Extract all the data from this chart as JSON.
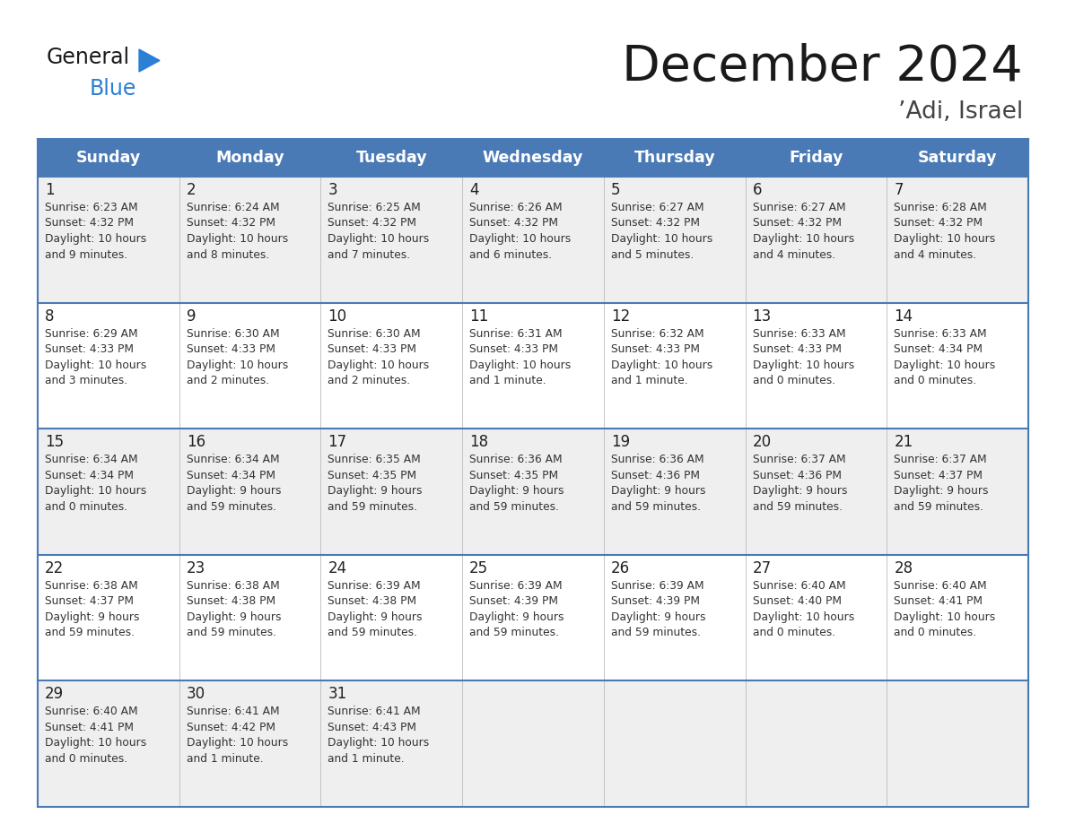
{
  "title": "December 2024",
  "subtitle": "’Adi, Israel",
  "days_of_week": [
    "Sunday",
    "Monday",
    "Tuesday",
    "Wednesday",
    "Thursday",
    "Friday",
    "Saturday"
  ],
  "header_bg": "#4a7ab5",
  "header_text_color": "#ffffff",
  "cell_bg_odd": "#efefef",
  "cell_bg_even": "#ffffff",
  "cell_border_color": "#4a7ab5",
  "day_num_color": "#222222",
  "cell_text_color": "#333333",
  "title_color": "#1a1a1a",
  "subtitle_color": "#444444",
  "logo_general_color": "#1a1a1a",
  "logo_blue_color": "#2b7fd4",
  "logo_triangle_color": "#2b7fd4",
  "weeks": [
    [
      {
        "day": 1,
        "sunrise": "6:23 AM",
        "sunset": "4:32 PM",
        "daylight": "10 hours\nand 9 minutes."
      },
      {
        "day": 2,
        "sunrise": "6:24 AM",
        "sunset": "4:32 PM",
        "daylight": "10 hours\nand 8 minutes."
      },
      {
        "day": 3,
        "sunrise": "6:25 AM",
        "sunset": "4:32 PM",
        "daylight": "10 hours\nand 7 minutes."
      },
      {
        "day": 4,
        "sunrise": "6:26 AM",
        "sunset": "4:32 PM",
        "daylight": "10 hours\nand 6 minutes."
      },
      {
        "day": 5,
        "sunrise": "6:27 AM",
        "sunset": "4:32 PM",
        "daylight": "10 hours\nand 5 minutes."
      },
      {
        "day": 6,
        "sunrise": "6:27 AM",
        "sunset": "4:32 PM",
        "daylight": "10 hours\nand 4 minutes."
      },
      {
        "day": 7,
        "sunrise": "6:28 AM",
        "sunset": "4:32 PM",
        "daylight": "10 hours\nand 4 minutes."
      }
    ],
    [
      {
        "day": 8,
        "sunrise": "6:29 AM",
        "sunset": "4:33 PM",
        "daylight": "10 hours\nand 3 minutes."
      },
      {
        "day": 9,
        "sunrise": "6:30 AM",
        "sunset": "4:33 PM",
        "daylight": "10 hours\nand 2 minutes."
      },
      {
        "day": 10,
        "sunrise": "6:30 AM",
        "sunset": "4:33 PM",
        "daylight": "10 hours\nand 2 minutes."
      },
      {
        "day": 11,
        "sunrise": "6:31 AM",
        "sunset": "4:33 PM",
        "daylight": "10 hours\nand 1 minute."
      },
      {
        "day": 12,
        "sunrise": "6:32 AM",
        "sunset": "4:33 PM",
        "daylight": "10 hours\nand 1 minute."
      },
      {
        "day": 13,
        "sunrise": "6:33 AM",
        "sunset": "4:33 PM",
        "daylight": "10 hours\nand 0 minutes."
      },
      {
        "day": 14,
        "sunrise": "6:33 AM",
        "sunset": "4:34 PM",
        "daylight": "10 hours\nand 0 minutes."
      }
    ],
    [
      {
        "day": 15,
        "sunrise": "6:34 AM",
        "sunset": "4:34 PM",
        "daylight": "10 hours\nand 0 minutes."
      },
      {
        "day": 16,
        "sunrise": "6:34 AM",
        "sunset": "4:34 PM",
        "daylight": "9 hours\nand 59 minutes."
      },
      {
        "day": 17,
        "sunrise": "6:35 AM",
        "sunset": "4:35 PM",
        "daylight": "9 hours\nand 59 minutes."
      },
      {
        "day": 18,
        "sunrise": "6:36 AM",
        "sunset": "4:35 PM",
        "daylight": "9 hours\nand 59 minutes."
      },
      {
        "day": 19,
        "sunrise": "6:36 AM",
        "sunset": "4:36 PM",
        "daylight": "9 hours\nand 59 minutes."
      },
      {
        "day": 20,
        "sunrise": "6:37 AM",
        "sunset": "4:36 PM",
        "daylight": "9 hours\nand 59 minutes."
      },
      {
        "day": 21,
        "sunrise": "6:37 AM",
        "sunset": "4:37 PM",
        "daylight": "9 hours\nand 59 minutes."
      }
    ],
    [
      {
        "day": 22,
        "sunrise": "6:38 AM",
        "sunset": "4:37 PM",
        "daylight": "9 hours\nand 59 minutes."
      },
      {
        "day": 23,
        "sunrise": "6:38 AM",
        "sunset": "4:38 PM",
        "daylight": "9 hours\nand 59 minutes."
      },
      {
        "day": 24,
        "sunrise": "6:39 AM",
        "sunset": "4:38 PM",
        "daylight": "9 hours\nand 59 minutes."
      },
      {
        "day": 25,
        "sunrise": "6:39 AM",
        "sunset": "4:39 PM",
        "daylight": "9 hours\nand 59 minutes."
      },
      {
        "day": 26,
        "sunrise": "6:39 AM",
        "sunset": "4:39 PM",
        "daylight": "9 hours\nand 59 minutes."
      },
      {
        "day": 27,
        "sunrise": "6:40 AM",
        "sunset": "4:40 PM",
        "daylight": "10 hours\nand 0 minutes."
      },
      {
        "day": 28,
        "sunrise": "6:40 AM",
        "sunset": "4:41 PM",
        "daylight": "10 hours\nand 0 minutes."
      }
    ],
    [
      {
        "day": 29,
        "sunrise": "6:40 AM",
        "sunset": "4:41 PM",
        "daylight": "10 hours\nand 0 minutes."
      },
      {
        "day": 30,
        "sunrise": "6:41 AM",
        "sunset": "4:42 PM",
        "daylight": "10 hours\nand 1 minute."
      },
      {
        "day": 31,
        "sunrise": "6:41 AM",
        "sunset": "4:43 PM",
        "daylight": "10 hours\nand 1 minute."
      },
      null,
      null,
      null,
      null
    ]
  ]
}
